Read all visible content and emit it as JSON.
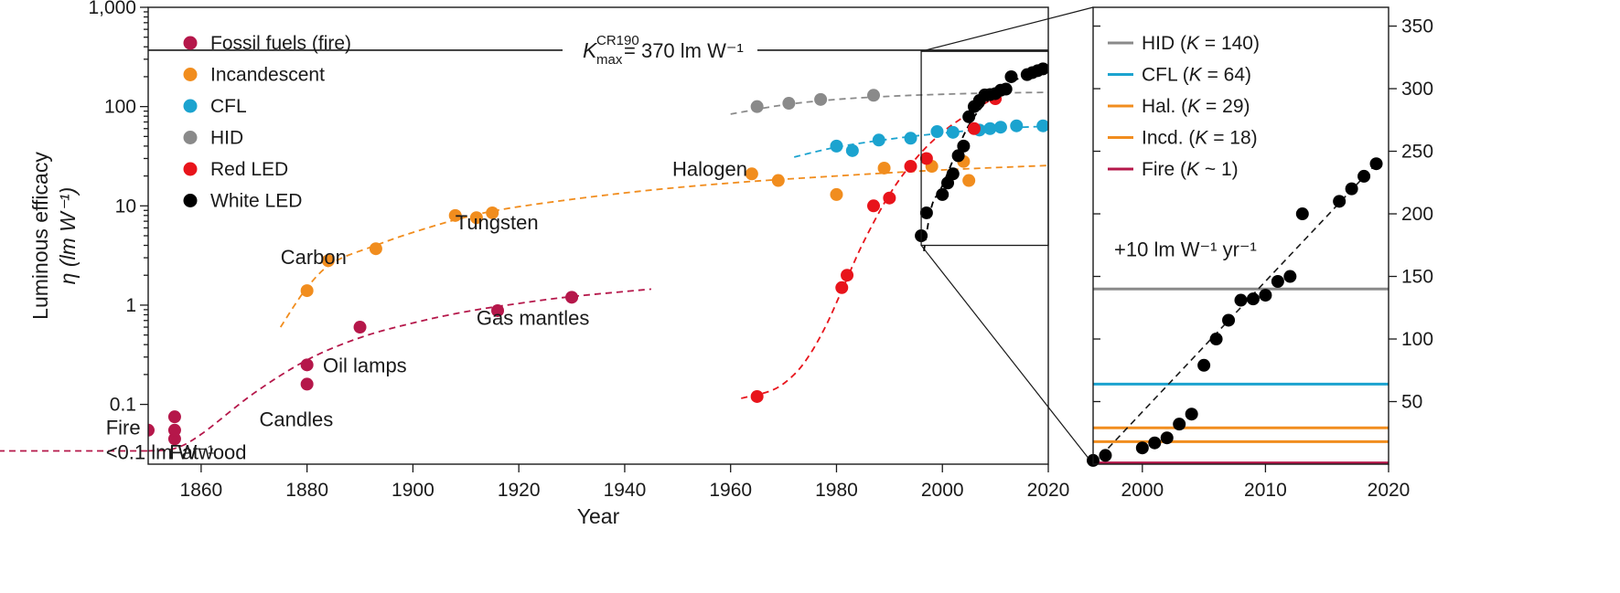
{
  "chart_data": [
    {
      "type": "scatter",
      "xlabel": "Year",
      "ylabel_line1": "Luminous efficacy",
      "ylabel_line2": "η (lm W⁻¹)",
      "xlim": [
        1850,
        2020
      ],
      "ylim": [
        0.025,
        1000
      ],
      "y_scale": "log",
      "x_ticks": [
        1860,
        1880,
        1900,
        1920,
        1940,
        1960,
        1980,
        2000,
        2020
      ],
      "y_ticks": [
        {
          "value": 0.1,
          "label": "0.1"
        },
        {
          "value": 1,
          "label": "1"
        },
        {
          "value": 10,
          "label": "10"
        },
        {
          "value": 100,
          "label": "100"
        },
        {
          "value": 1000,
          "label": "1,000"
        }
      ],
      "legend_position": "top-left",
      "limit_line": {
        "value": 370,
        "x_range": [
          1850,
          2020
        ],
        "label_main": "K",
        "label_sup": "CR190",
        "label_sub": "max",
        "label_rest": "= 370 lm W⁻¹"
      },
      "series": [
        {
          "name": "Fossil fuels (fire)",
          "color": "#b5174a",
          "points": [
            [
              1850,
              0.055
            ],
            [
              1855,
              0.045
            ],
            [
              1855,
              0.055
            ],
            [
              1855,
              0.075
            ],
            [
              1880,
              0.16
            ],
            [
              1880,
              0.25
            ],
            [
              1890,
              0.6
            ],
            [
              1916,
              0.88
            ],
            [
              1930,
              1.2
            ]
          ]
        },
        {
          "name": "Incandescent",
          "color": "#f18d1e",
          "points": [
            [
              1880,
              1.4
            ],
            [
              1884,
              2.8
            ],
            [
              1893,
              3.7
            ],
            [
              1908,
              8.0
            ],
            [
              1912,
              7.6
            ],
            [
              1915,
              8.5
            ],
            [
              1964,
              21
            ],
            [
              1969,
              18
            ],
            [
              1980,
              13
            ],
            [
              1989,
              24
            ],
            [
              1998,
              25
            ],
            [
              2004,
              28
            ],
            [
              2005,
              18
            ]
          ]
        },
        {
          "name": "CFL",
          "color": "#1ba3cf",
          "points": [
            [
              1980,
              40
            ],
            [
              1983,
              36
            ],
            [
              1988,
              46
            ],
            [
              1994,
              48
            ],
            [
              1999,
              56
            ],
            [
              2002,
              55
            ],
            [
              2007,
              58
            ],
            [
              2009,
              60
            ],
            [
              2011,
              62
            ],
            [
              2014,
              64
            ],
            [
              2019,
              64
            ]
          ]
        },
        {
          "name": "HID",
          "color": "#8a8a8a",
          "points": [
            [
              1965,
              100
            ],
            [
              1971,
              108
            ],
            [
              1977,
              118
            ],
            [
              1987,
              130
            ]
          ]
        },
        {
          "name": "Red LED",
          "color": "#e8141b",
          "points": [
            [
              1965,
              0.12
            ],
            [
              1981,
              1.5
            ],
            [
              1982,
              2.0
            ],
            [
              1987,
              10
            ],
            [
              1990,
              12
            ],
            [
              1994,
              25
            ],
            [
              1997,
              30
            ],
            [
              2006,
              60
            ],
            [
              2010,
              120
            ]
          ]
        },
        {
          "name": "White LED",
          "color": "#000000",
          "points": [
            [
              1996,
              5
            ],
            [
              1997,
              8.5
            ],
            [
              2000,
              13
            ],
            [
              2001,
              17
            ],
            [
              2002,
              21
            ],
            [
              2003,
              32
            ],
            [
              2004,
              40
            ],
            [
              2005,
              79
            ],
            [
              2006,
              100
            ],
            [
              2007,
              115
            ],
            [
              2008,
              131
            ],
            [
              2009,
              132
            ],
            [
              2010,
              135
            ],
            [
              2011,
              146
            ],
            [
              2012,
              150
            ],
            [
              2013,
              200
            ],
            [
              2016,
              210
            ],
            [
              2017,
              220
            ],
            [
              2018,
              230
            ],
            [
              2019,
              240
            ]
          ]
        }
      ],
      "trend_curves": [
        {
          "series": "Fossil fuels (fire)",
          "color": "#b5174a",
          "points": [
            [
              1850,
              0.034
            ],
            [
              1855,
              0.036
            ],
            [
              1860,
              0.05
            ],
            [
              1870,
              0.13
            ],
            [
              1880,
              0.28
            ],
            [
              1890,
              0.47
            ],
            [
              1900,
              0.66
            ],
            [
              1910,
              0.86
            ],
            [
              1920,
              1.04
            ],
            [
              1930,
              1.22
            ],
            [
              1945,
              1.45
            ]
          ]
        },
        {
          "series": "Fossil fuels (fire)",
          "color": "#b5174a",
          "dashed": true,
          "points": [
            [
              1803,
              0.034
            ],
            [
              1850,
              0.034
            ]
          ]
        },
        {
          "series": "Incandescent",
          "color": "#f18d1e",
          "points": [
            [
              1875,
              0.6
            ],
            [
              1880,
              1.5
            ],
            [
              1885,
              2.7
            ],
            [
              1893,
              4.0
            ],
            [
              1900,
              5.4
            ],
            [
              1910,
              7.7
            ],
            [
              1920,
              9.8
            ],
            [
              1940,
              13.5
            ],
            [
              1960,
              17
            ],
            [
              1980,
              20
            ],
            [
              2000,
              23
            ],
            [
              2020,
              25.5
            ]
          ]
        },
        {
          "series": "CFL",
          "color": "#1ba3cf",
          "points": [
            [
              1972,
              31
            ],
            [
              1980,
              39
            ],
            [
              1990,
              47
            ],
            [
              2000,
              54
            ],
            [
              2010,
              60
            ],
            [
              2020,
              63.5
            ]
          ]
        },
        {
          "series": "HID",
          "color": "#8a8a8a",
          "points": [
            [
              1960,
              84
            ],
            [
              1970,
              104
            ],
            [
              1980,
              118
            ],
            [
              1990,
              127
            ],
            [
              2000,
              133
            ],
            [
              2010,
              137
            ],
            [
              2020,
              139
            ]
          ]
        },
        {
          "series": "Red LED",
          "color": "#e8141b",
          "points": [
            [
              1962,
              0.115
            ],
            [
              1968,
              0.14
            ],
            [
              1972,
              0.2
            ],
            [
              1975,
              0.32
            ],
            [
              1978,
              0.62
            ],
            [
              1981,
              1.4
            ],
            [
              1985,
              4.2
            ],
            [
              1990,
              13
            ],
            [
              1995,
              30
            ],
            [
              2000,
              55
            ],
            [
              2005,
              85
            ],
            [
              2010,
              125
            ]
          ]
        },
        {
          "series": "White LED",
          "color": "#000000",
          "points": [
            [
              1996.5,
              3.5
            ],
            [
              1998,
              10
            ],
            [
              2000,
              16
            ],
            [
              2005,
              65
            ],
            [
              2010,
              135
            ],
            [
              2015,
              200
            ],
            [
              2019,
              240
            ]
          ]
        }
      ],
      "annotations": [
        {
          "text": "Fire",
          "x": 1842,
          "y": 0.05
        },
        {
          "text": "<0.1 lm W⁻¹",
          "x": 1842,
          "y": 0.028
        },
        {
          "text": "Fatwood",
          "x": 1854,
          "y": 0.028
        },
        {
          "text": "Candles",
          "x": 1871,
          "y": 0.06
        },
        {
          "text": "Oil lamps",
          "x": 1883,
          "y": 0.21
        },
        {
          "text": "Gas mantles",
          "x": 1912,
          "y": 0.63
        },
        {
          "text": "Carbon",
          "x": 1875,
          "y": 2.6
        },
        {
          "text": "Tungsten",
          "x": 1908,
          "y": 5.8
        },
        {
          "text": "Halogen",
          "x": 1949,
          "y": 20
        }
      ],
      "zoom_box": {
        "x": [
          1996,
          2020
        ],
        "y": [
          4,
          360
        ]
      }
    },
    {
      "type": "scatter",
      "xlim": [
        1996,
        2020
      ],
      "ylim": [
        0,
        365
      ],
      "x_ticks": [
        2000,
        2010,
        2020
      ],
      "y_ticks": [
        50,
        100,
        150,
        200,
        250,
        300,
        350
      ],
      "y_axis_side": "right",
      "legend_position": "top-left",
      "reference_lines": [
        {
          "name": "HID",
          "k_value": "140",
          "relation": "=",
          "value": 140,
          "color": "#8a8a8a"
        },
        {
          "name": "CFL",
          "k_value": "64",
          "relation": "=",
          "value": 64,
          "color": "#1ba3cf"
        },
        {
          "name": "Hal.",
          "k_value": "29",
          "relation": "=",
          "value": 29,
          "color": "#f18d1e"
        },
        {
          "name": "Incd.",
          "k_value": "18",
          "relation": "=",
          "value": 18,
          "color": "#f18d1e"
        },
        {
          "name": "Fire",
          "k_value": "1",
          "relation": "~",
          "value": 1,
          "color": "#b5174a"
        }
      ],
      "series": [
        {
          "name": "White LED",
          "color": "#000000",
          "points": [
            [
              1996,
              3
            ],
            [
              1997,
              7
            ],
            [
              2000,
              13
            ],
            [
              2001,
              17
            ],
            [
              2002,
              21
            ],
            [
              2003,
              32
            ],
            [
              2004,
              40
            ],
            [
              2005,
              79
            ],
            [
              2006,
              100
            ],
            [
              2007,
              115
            ],
            [
              2008,
              131
            ],
            [
              2009,
              132
            ],
            [
              2010,
              135
            ],
            [
              2011,
              146
            ],
            [
              2012,
              150
            ],
            [
              2013,
              200
            ],
            [
              2016,
              210
            ],
            [
              2017,
              220
            ],
            [
              2018,
              230
            ],
            [
              2019,
              240
            ]
          ]
        }
      ],
      "trend_line": {
        "points": [
          [
            1996,
            0
          ],
          [
            2019,
            240
          ]
        ],
        "label": "+10 lm W⁻¹ yr⁻¹",
        "label_x": 2003.5,
        "label_y": 166
      }
    }
  ]
}
